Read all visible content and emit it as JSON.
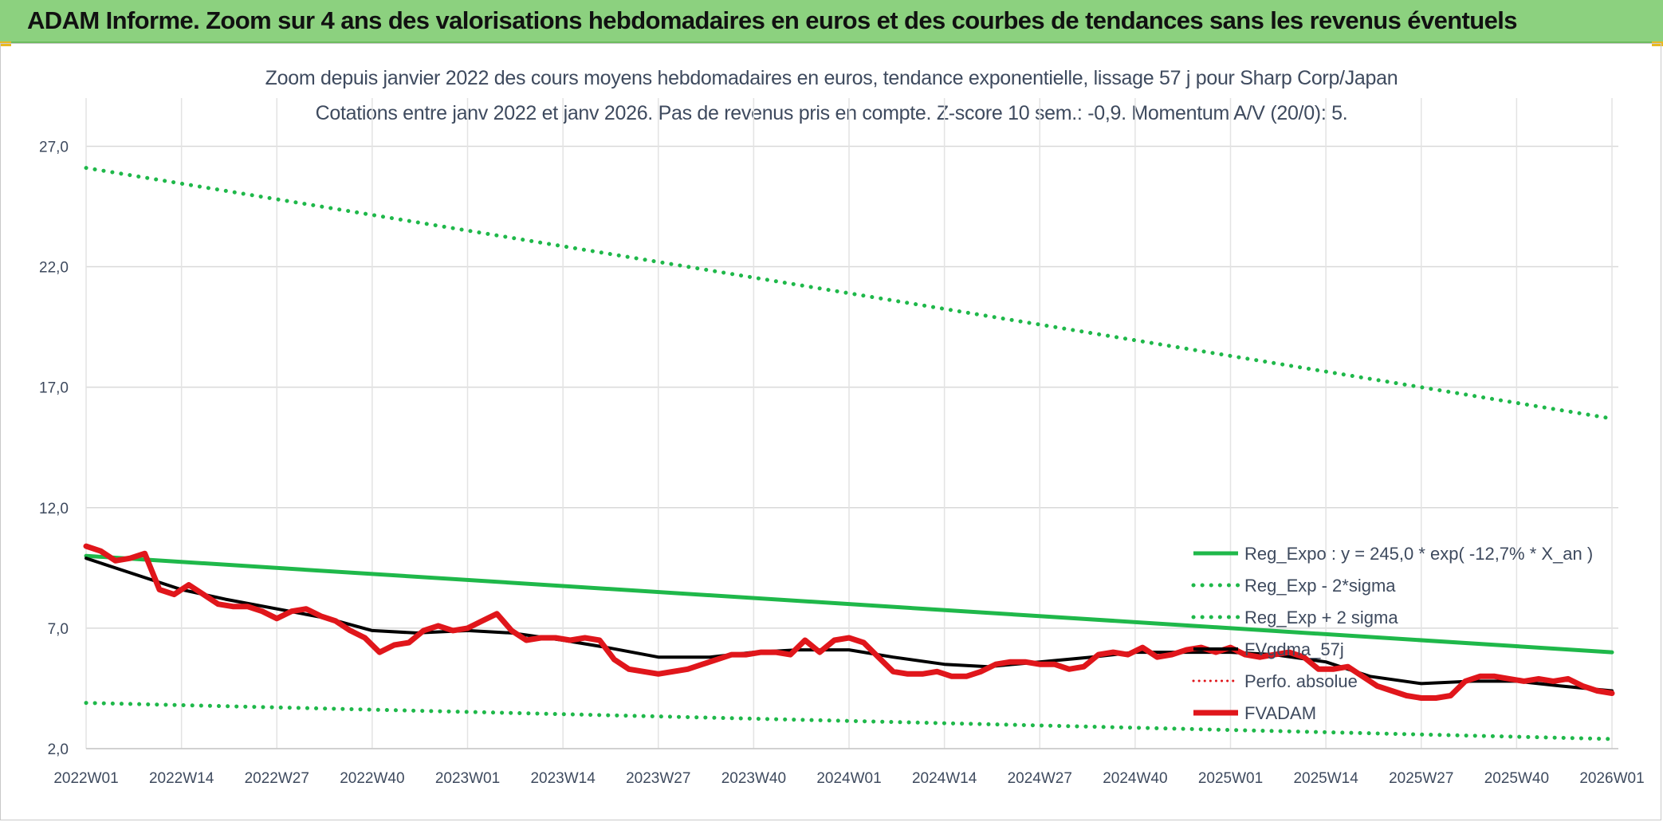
{
  "banner": {
    "title": "ADAM Informe. Zoom sur 4 ans des valorisations hebdomadaires en euros et des courbes de tendances sans les revenus éventuels"
  },
  "chart_data": {
    "type": "line",
    "title": "Zoom depuis janvier 2022 des cours moyens hebdomadaires en euros, tendance exponentielle, lissage 57 j pour Sharp Corp/Japan",
    "subtitle": "Cotations entre janv 2022 et janv 2026. Pas de revenus pris en compte. Z-score 10 sem.: -0,9. Momentum A/V (20/0): 5.",
    "xlabel": "",
    "ylabel": "",
    "ylim": [
      2.0,
      29.0
    ],
    "yticks": [
      2.0,
      7.0,
      12.0,
      17.0,
      22.0,
      27.0
    ],
    "ytick_labels": [
      "2,0",
      "7,0",
      "12,0",
      "17,0",
      "22,0",
      "27,0"
    ],
    "xlim": [
      "2022W01",
      "2026W01"
    ],
    "xticks": [
      "2022W01",
      "2022W14",
      "2022W27",
      "2022W40",
      "2023W01",
      "2023W14",
      "2023W27",
      "2023W40",
      "2024W01",
      "2024W14",
      "2024W27",
      "2024W40",
      "2025W01",
      "2025W14",
      "2025W27",
      "2025W40",
      "2026W01"
    ],
    "grid": true,
    "legend_position": "right",
    "series": [
      {
        "name": "Reg_Expo : y = 245,0 * exp( -12,7% *  X_an )",
        "style": "solid",
        "color": "#1fb84a",
        "x": [
          "2022W01",
          "2026W01"
        ],
        "y": [
          10.0,
          6.0
        ]
      },
      {
        "name": "Reg_Exp - 2*sigma",
        "style": "dotted",
        "color": "#1fb84a",
        "x": [
          "2022W01",
          "2026W01"
        ],
        "y": [
          3.9,
          2.4
        ]
      },
      {
        "name": "Reg_Exp + 2 sigma",
        "style": "dotted",
        "color": "#1fb84a",
        "x": [
          "2022W01",
          "2026W01"
        ],
        "y": [
          26.1,
          15.7
        ]
      },
      {
        "name": "FVgdma_57j",
        "style": "solid",
        "color": "#000000",
        "x": [
          "2022W01",
          "2022W07",
          "2022W14",
          "2022W20",
          "2022W27",
          "2022W34",
          "2022W40",
          "2022W46",
          "2023W01",
          "2023W07",
          "2023W14",
          "2023W20",
          "2023W27",
          "2023W34",
          "2023W40",
          "2023W46",
          "2024W01",
          "2024W07",
          "2024W14",
          "2024W20",
          "2024W27",
          "2024W34",
          "2024W40",
          "2024W46",
          "2025W01",
          "2025W07",
          "2025W14",
          "2025W20",
          "2025W27",
          "2025W34",
          "2025W40",
          "2025W46",
          "2026W01"
        ],
        "y": [
          9.9,
          9.3,
          8.6,
          8.2,
          7.8,
          7.4,
          6.9,
          6.8,
          6.9,
          6.8,
          6.5,
          6.2,
          5.8,
          5.8,
          6.0,
          6.1,
          6.1,
          5.8,
          5.5,
          5.4,
          5.6,
          5.8,
          6.0,
          6.0,
          6.0,
          5.9,
          5.6,
          5.0,
          4.7,
          4.8,
          4.8,
          4.6,
          4.4
        ]
      },
      {
        "name": "Perfo. absolue",
        "style": "dotted",
        "color": "#e0161b",
        "x": [],
        "y": []
      },
      {
        "name": "FVADAM",
        "style": "solid",
        "color": "#e0161b",
        "x": [
          "2022W01",
          "2022W03",
          "2022W05",
          "2022W07",
          "2022W09",
          "2022W11",
          "2022W13",
          "2022W15",
          "2022W17",
          "2022W19",
          "2022W21",
          "2022W23",
          "2022W25",
          "2022W27",
          "2022W29",
          "2022W31",
          "2022W33",
          "2022W35",
          "2022W37",
          "2022W39",
          "2022W41",
          "2022W43",
          "2022W45",
          "2022W47",
          "2022W49",
          "2022W51",
          "2023W01",
          "2023W03",
          "2023W05",
          "2023W07",
          "2023W09",
          "2023W11",
          "2023W13",
          "2023W15",
          "2023W17",
          "2023W19",
          "2023W21",
          "2023W23",
          "2023W25",
          "2023W27",
          "2023W29",
          "2023W31",
          "2023W33",
          "2023W35",
          "2023W37",
          "2023W39",
          "2023W41",
          "2023W43",
          "2023W45",
          "2023W47",
          "2023W49",
          "2023W51",
          "2024W01",
          "2024W03",
          "2024W05",
          "2024W07",
          "2024W09",
          "2024W11",
          "2024W13",
          "2024W15",
          "2024W17",
          "2024W19",
          "2024W21",
          "2024W23",
          "2024W25",
          "2024W27",
          "2024W29",
          "2024W31",
          "2024W33",
          "2024W35",
          "2024W37",
          "2024W39",
          "2024W41",
          "2024W43",
          "2024W45",
          "2024W47",
          "2024W49",
          "2024W51",
          "2025W01",
          "2025W03",
          "2025W05",
          "2025W07",
          "2025W09",
          "2025W11",
          "2025W13",
          "2025W15",
          "2025W17",
          "2025W19",
          "2025W21",
          "2025W23",
          "2025W25",
          "2025W27",
          "2025W29",
          "2025W31",
          "2025W33",
          "2025W35",
          "2025W37",
          "2025W39",
          "2025W41",
          "2025W43",
          "2025W45",
          "2025W47",
          "2025W49",
          "2025W51",
          "2026W01"
        ],
        "y": [
          10.4,
          10.2,
          9.8,
          9.9,
          10.1,
          8.6,
          8.4,
          8.8,
          8.4,
          8.0,
          7.9,
          7.9,
          7.7,
          7.4,
          7.7,
          7.8,
          7.5,
          7.3,
          6.9,
          6.6,
          6.0,
          6.3,
          6.4,
          6.9,
          7.1,
          6.9,
          7.0,
          7.3,
          7.6,
          6.9,
          6.5,
          6.6,
          6.6,
          6.5,
          6.6,
          6.5,
          5.7,
          5.3,
          5.2,
          5.1,
          5.2,
          5.3,
          5.5,
          5.7,
          5.9,
          5.9,
          6.0,
          6.0,
          5.9,
          6.5,
          6.0,
          6.5,
          6.6,
          6.4,
          5.8,
          5.2,
          5.1,
          5.1,
          5.2,
          5.0,
          5.0,
          5.2,
          5.5,
          5.6,
          5.6,
          5.5,
          5.5,
          5.3,
          5.4,
          5.9,
          6.0,
          5.9,
          6.2,
          5.8,
          5.9,
          6.1,
          6.2,
          6.0,
          6.2,
          5.9,
          5.8,
          5.9,
          6.0,
          5.8,
          5.3,
          5.3,
          5.4,
          5.0,
          4.6,
          4.4,
          4.2,
          4.1,
          4.1,
          4.2,
          4.8,
          5.0,
          5.0,
          4.9,
          4.8,
          4.9,
          4.8,
          4.9,
          4.6,
          4.4,
          4.3
        ]
      }
    ]
  }
}
